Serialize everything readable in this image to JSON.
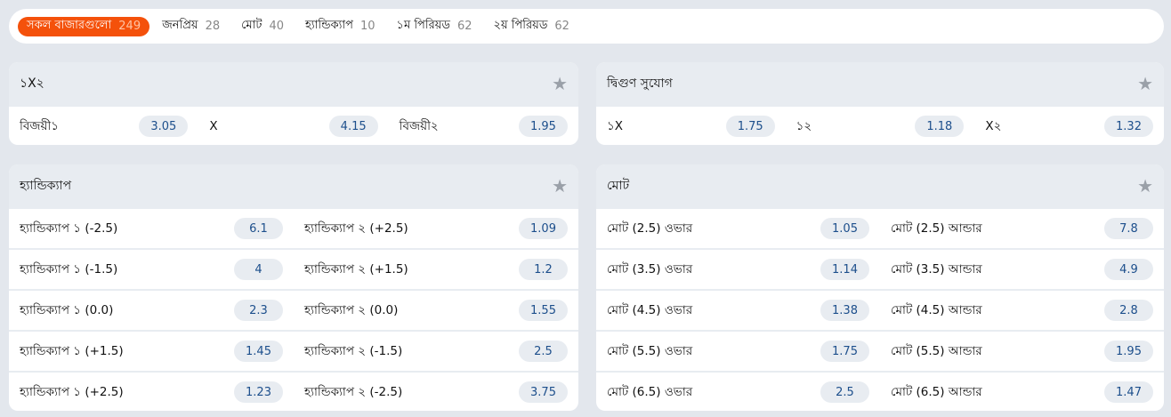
{
  "tabs": [
    {
      "label": "সকল বাজারগুলো",
      "count": "249",
      "active": true
    },
    {
      "label": "জনপ্রিয়",
      "count": "28"
    },
    {
      "label": "মোট",
      "count": "40"
    },
    {
      "label": "হ্যান্ডিক্যাপ",
      "count": "10"
    },
    {
      "label": "১ম পিরিয়ড",
      "count": "62"
    },
    {
      "label": "২য় পিরিয়ড",
      "count": "62"
    }
  ],
  "panels": [
    {
      "title": "১X২",
      "rows": [
        [
          {
            "label": "বিজয়ী১",
            "odd": "3.05"
          },
          {
            "label": "X",
            "odd": "4.15"
          },
          {
            "label": "বিজয়ী২",
            "odd": "1.95"
          }
        ]
      ]
    },
    {
      "title": "দ্বিগুণ সুযোগ",
      "rows": [
        [
          {
            "label": "১X",
            "odd": "1.75"
          },
          {
            "label": "১২",
            "odd": "1.18"
          },
          {
            "label": "X২",
            "odd": "1.32"
          }
        ]
      ]
    },
    {
      "title": "হ্যান্ডিক্যাপ",
      "rows": [
        [
          {
            "label": "হ্যান্ডিক্যাপ ১ (-2.5)",
            "odd": "6.1"
          },
          {
            "label": "হ্যান্ডিক্যাপ ২ (+2.5)",
            "odd": "1.09"
          }
        ],
        [
          {
            "label": "হ্যান্ডিক্যাপ ১ (-1.5)",
            "odd": "4"
          },
          {
            "label": "হ্যান্ডিক্যাপ ২ (+1.5)",
            "odd": "1.2"
          }
        ],
        [
          {
            "label": "হ্যান্ডিক্যাপ ১ (0.0)",
            "odd": "2.3"
          },
          {
            "label": "হ্যান্ডিক্যাপ ২ (0.0)",
            "odd": "1.55"
          }
        ],
        [
          {
            "label": "হ্যান্ডিক্যাপ ১ (+1.5)",
            "odd": "1.45"
          },
          {
            "label": "হ্যান্ডিক্যাপ ২ (-1.5)",
            "odd": "2.5"
          }
        ],
        [
          {
            "label": "হ্যান্ডিক্যাপ ১ (+2.5)",
            "odd": "1.23"
          },
          {
            "label": "হ্যান্ডিক্যাপ ২ (-2.5)",
            "odd": "3.75"
          }
        ]
      ]
    },
    {
      "title": "মোট",
      "rows": [
        [
          {
            "label": "মোট (2.5) ওভার",
            "odd": "1.05"
          },
          {
            "label": "মোট (2.5) আন্ডার",
            "odd": "7.8"
          }
        ],
        [
          {
            "label": "মোট (3.5) ওভার",
            "odd": "1.14"
          },
          {
            "label": "মোট (3.5) আন্ডার",
            "odd": "4.9"
          }
        ],
        [
          {
            "label": "মোট (4.5) ওভার",
            "odd": "1.38"
          },
          {
            "label": "মোট (4.5) আন্ডার",
            "odd": "2.8"
          }
        ],
        [
          {
            "label": "মোট (5.5) ওভার",
            "odd": "1.75"
          },
          {
            "label": "মোট (5.5) আন্ডার",
            "odd": "1.95"
          }
        ],
        [
          {
            "label": "মোট (6.5) ওভার",
            "odd": "2.5"
          },
          {
            "label": "মোট (6.5) আন্ডার",
            "odd": "1.47"
          }
        ]
      ]
    }
  ],
  "colors": {
    "accent": "#f4510b",
    "odd_text": "#1d4f8c",
    "header_bg": "#e8ecf1"
  },
  "icons": {
    "favorite": "star-icon"
  }
}
